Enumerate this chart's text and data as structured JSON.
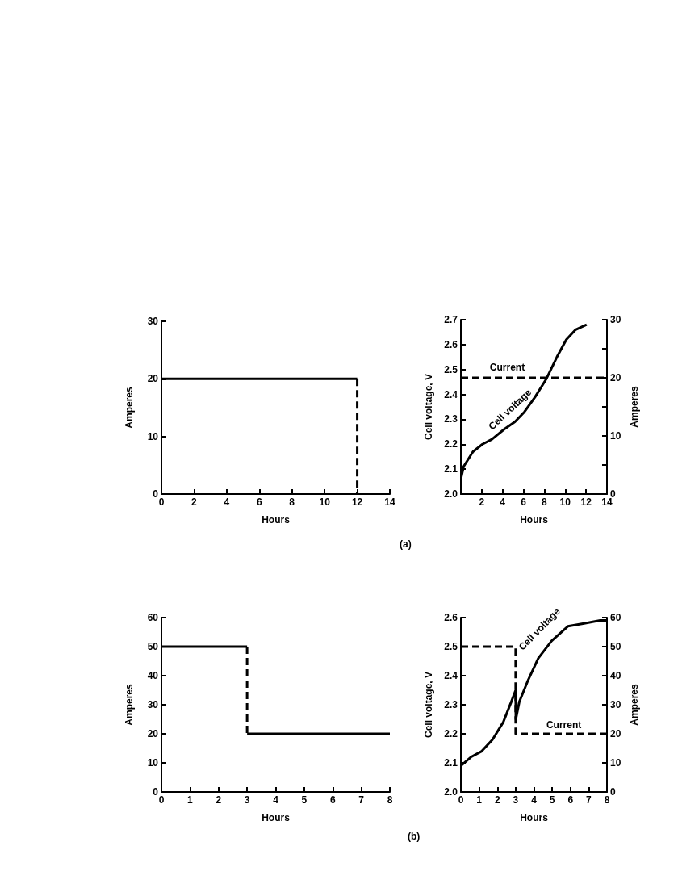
{
  "chart_data": [
    {
      "type": "line",
      "xlabel": "Hours",
      "ylabel": "Amperes",
      "xlim": [
        0,
        14
      ],
      "xticks": [
        0,
        2,
        4,
        6,
        8,
        10,
        12,
        14
      ],
      "ylim": [
        0,
        30
      ],
      "yticks": [
        0,
        10,
        20,
        30
      ],
      "marker": "none",
      "series": [
        {
          "color": "#000000",
          "line_style": "solid",
          "x": [
            0,
            12
          ],
          "values": [
            20,
            20
          ]
        },
        {
          "color": "#000000",
          "line_style": "dashed",
          "x": [
            12,
            12
          ],
          "values": [
            20,
            0
          ]
        }
      ]
    },
    {
      "type": "line",
      "xlabel": "Hours",
      "ylabel": "Cell voltage, V",
      "y2label": "Amperes",
      "xlim": [
        0,
        14
      ],
      "xticks": [
        2,
        4,
        6,
        8,
        10,
        12,
        14
      ],
      "ylim": [
        2.0,
        2.7
      ],
      "yticks": [
        {
          "value": 2.0,
          "label": "2.0"
        },
        2.1,
        2.2,
        2.3,
        2.4,
        2.5,
        2.6,
        2.7
      ],
      "y2lim": [
        0,
        30
      ],
      "y2ticks": [
        0,
        {
          "value": 5,
          "label": null
        },
        10,
        {
          "value": 15,
          "label": null
        },
        20,
        {
          "value": 25,
          "label": null
        },
        30
      ],
      "marker": "none",
      "annotations": [
        "(a)"
      ],
      "series": [
        {
          "name": "Cell voltage",
          "color": "#000000",
          "line_style": "solid",
          "x": [
            0.05,
            0.26,
            1.16,
            2.07,
            2.98,
            4.15,
            5.18,
            6.09,
            7.12,
            8.16,
            9.2,
            10.1,
            11.0,
            12.05
          ],
          "values": [
            2.07,
            2.11,
            2.17,
            2.2,
            2.22,
            2.26,
            2.29,
            2.33,
            2.39,
            2.46,
            2.55,
            2.62,
            2.66,
            2.68
          ]
        },
        {
          "name": "Current",
          "color": "#000000",
          "line_style": "dashed",
          "axis": "y2",
          "x": [
            0,
            14
          ],
          "values": [
            20,
            20
          ]
        }
      ]
    },
    {
      "type": "line",
      "xlabel": "Hours",
      "ylabel": "Amperes",
      "xlim": [
        0,
        8
      ],
      "xticks": [
        0,
        1,
        2,
        3,
        4,
        5,
        6,
        7,
        8
      ],
      "ylim": [
        0,
        60
      ],
      "yticks": [
        0,
        10,
        20,
        30,
        40,
        50,
        60
      ],
      "marker": "none",
      "series": [
        {
          "color": "#000000",
          "line_style": "solid",
          "x": [
            0,
            3
          ],
          "values": [
            50,
            50
          ]
        },
        {
          "color": "#000000",
          "line_style": "dashed",
          "x": [
            3,
            3
          ],
          "values": [
            50,
            20
          ]
        },
        {
          "color": "#000000",
          "line_style": "solid",
          "x": [
            3,
            8
          ],
          "values": [
            20,
            20
          ]
        }
      ]
    },
    {
      "type": "line",
      "xlabel": "Hours",
      "ylabel": "Cell voltage, V",
      "y2label": "Amperes",
      "xlim": [
        0,
        8
      ],
      "xticks": [
        0,
        1,
        2,
        3,
        4,
        5,
        6,
        7,
        8
      ],
      "ylim": [
        2.0,
        2.6
      ],
      "yticks": [
        {
          "value": 2.0,
          "label": "2.0"
        },
        2.1,
        2.2,
        2.3,
        2.4,
        2.5,
        2.6
      ],
      "y2lim": [
        0,
        60
      ],
      "y2ticks": [
        0,
        10,
        20,
        30,
        40,
        50,
        60
      ],
      "marker": "none",
      "annotations": [
        "(b)"
      ],
      "series": [
        {
          "name": "Cell voltage",
          "color": "#000000",
          "line_style": "solid",
          "x": [
            0,
            0.55,
            1.14,
            1.73,
            2.32,
            2.76,
            3.0,
            3.01,
            3.2,
            3.65,
            4.24,
            4.97,
            5.86,
            6.75,
            7.63,
            8
          ],
          "values": [
            2.09,
            2.12,
            2.14,
            2.18,
            2.24,
            2.31,
            2.35,
            2.25,
            2.31,
            2.38,
            2.46,
            2.52,
            2.57,
            2.58,
            2.59,
            2.59
          ]
        },
        {
          "name": "Current",
          "color": "#000000",
          "line_style": "dashed",
          "axis": "y2",
          "x": [
            0,
            3,
            3,
            8
          ],
          "values": [
            50,
            50,
            20,
            20
          ]
        }
      ]
    }
  ]
}
